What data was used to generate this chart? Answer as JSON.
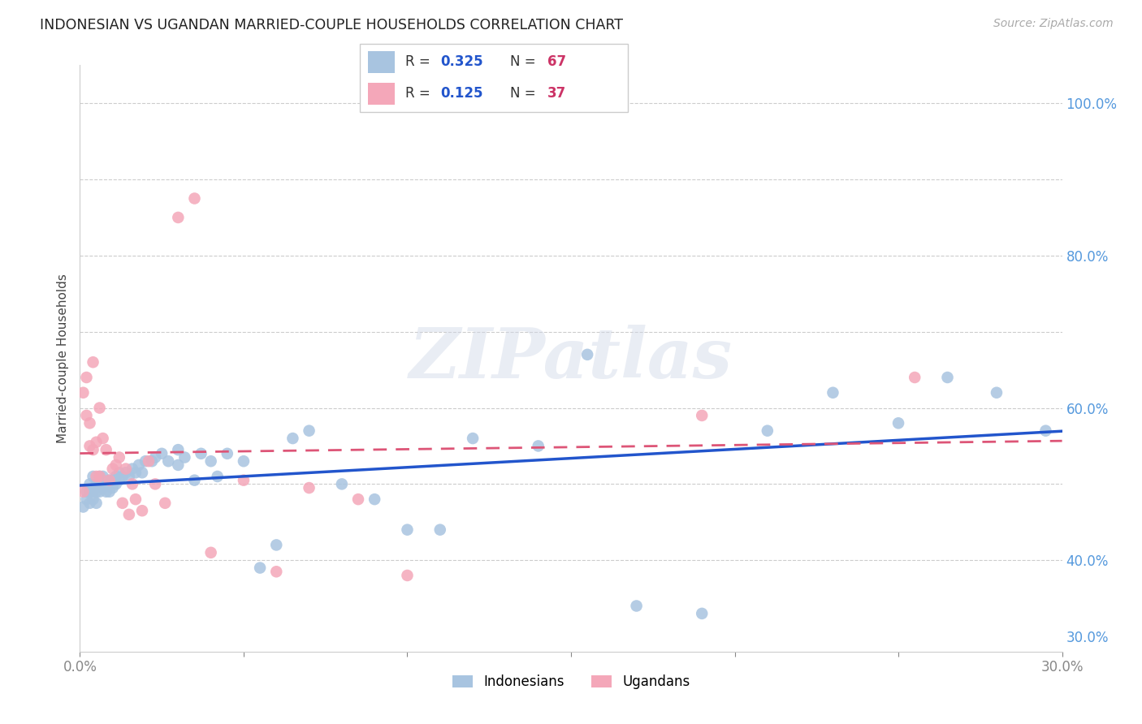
{
  "title": "INDONESIAN VS UGANDAN MARRIED-COUPLE HOUSEHOLDS CORRELATION CHART",
  "source": "Source: ZipAtlas.com",
  "ylabel": "Married-couple Households",
  "xlim": [
    0.0,
    0.3
  ],
  "ylim": [
    0.28,
    1.05
  ],
  "indonesian_color": "#a8c4e0",
  "ugandan_color": "#f4a7b9",
  "indonesian_line_color": "#2255cc",
  "ugandan_line_color": "#dd5577",
  "R_indonesian": "0.325",
  "N_indonesian": "67",
  "R_ugandan": "0.125",
  "N_ugandan": "37",
  "indonesian_x": [
    0.001,
    0.002,
    0.002,
    0.003,
    0.003,
    0.003,
    0.004,
    0.004,
    0.004,
    0.005,
    0.005,
    0.005,
    0.006,
    0.006,
    0.006,
    0.007,
    0.007,
    0.008,
    0.008,
    0.009,
    0.009,
    0.01,
    0.01,
    0.011,
    0.011,
    0.012,
    0.012,
    0.013,
    0.014,
    0.015,
    0.016,
    0.017,
    0.018,
    0.019,
    0.02,
    0.022,
    0.023,
    0.025,
    0.027,
    0.03,
    0.03,
    0.032,
    0.035,
    0.037,
    0.04,
    0.042,
    0.045,
    0.05,
    0.055,
    0.06,
    0.065,
    0.07,
    0.08,
    0.09,
    0.1,
    0.11,
    0.12,
    0.14,
    0.155,
    0.17,
    0.19,
    0.21,
    0.23,
    0.25,
    0.265,
    0.28,
    0.295
  ],
  "indonesian_y": [
    0.47,
    0.49,
    0.48,
    0.5,
    0.49,
    0.475,
    0.51,
    0.49,
    0.48,
    0.5,
    0.49,
    0.475,
    0.51,
    0.5,
    0.49,
    0.51,
    0.495,
    0.5,
    0.49,
    0.505,
    0.49,
    0.505,
    0.495,
    0.51,
    0.5,
    0.515,
    0.505,
    0.51,
    0.515,
    0.51,
    0.52,
    0.515,
    0.525,
    0.515,
    0.53,
    0.53,
    0.535,
    0.54,
    0.53,
    0.545,
    0.525,
    0.535,
    0.505,
    0.54,
    0.53,
    0.51,
    0.54,
    0.53,
    0.39,
    0.42,
    0.56,
    0.57,
    0.5,
    0.48,
    0.44,
    0.44,
    0.56,
    0.55,
    0.67,
    0.34,
    0.33,
    0.57,
    0.62,
    0.58,
    0.64,
    0.62,
    0.57
  ],
  "ugandan_x": [
    0.001,
    0.001,
    0.002,
    0.002,
    0.003,
    0.003,
    0.004,
    0.004,
    0.005,
    0.005,
    0.006,
    0.006,
    0.007,
    0.008,
    0.009,
    0.01,
    0.011,
    0.012,
    0.013,
    0.014,
    0.015,
    0.016,
    0.017,
    0.019,
    0.021,
    0.023,
    0.026,
    0.03,
    0.035,
    0.04,
    0.05,
    0.06,
    0.07,
    0.085,
    0.1,
    0.19,
    0.255
  ],
  "ugandan_y": [
    0.49,
    0.62,
    0.64,
    0.59,
    0.58,
    0.55,
    0.66,
    0.545,
    0.555,
    0.51,
    0.51,
    0.6,
    0.56,
    0.545,
    0.505,
    0.52,
    0.525,
    0.535,
    0.475,
    0.52,
    0.46,
    0.5,
    0.48,
    0.465,
    0.53,
    0.5,
    0.475,
    0.85,
    0.875,
    0.41,
    0.505,
    0.385,
    0.495,
    0.48,
    0.38,
    0.59,
    0.64
  ],
  "background_color": "#ffffff",
  "grid_color": "#cccccc",
  "watermark": "ZIPatlas"
}
